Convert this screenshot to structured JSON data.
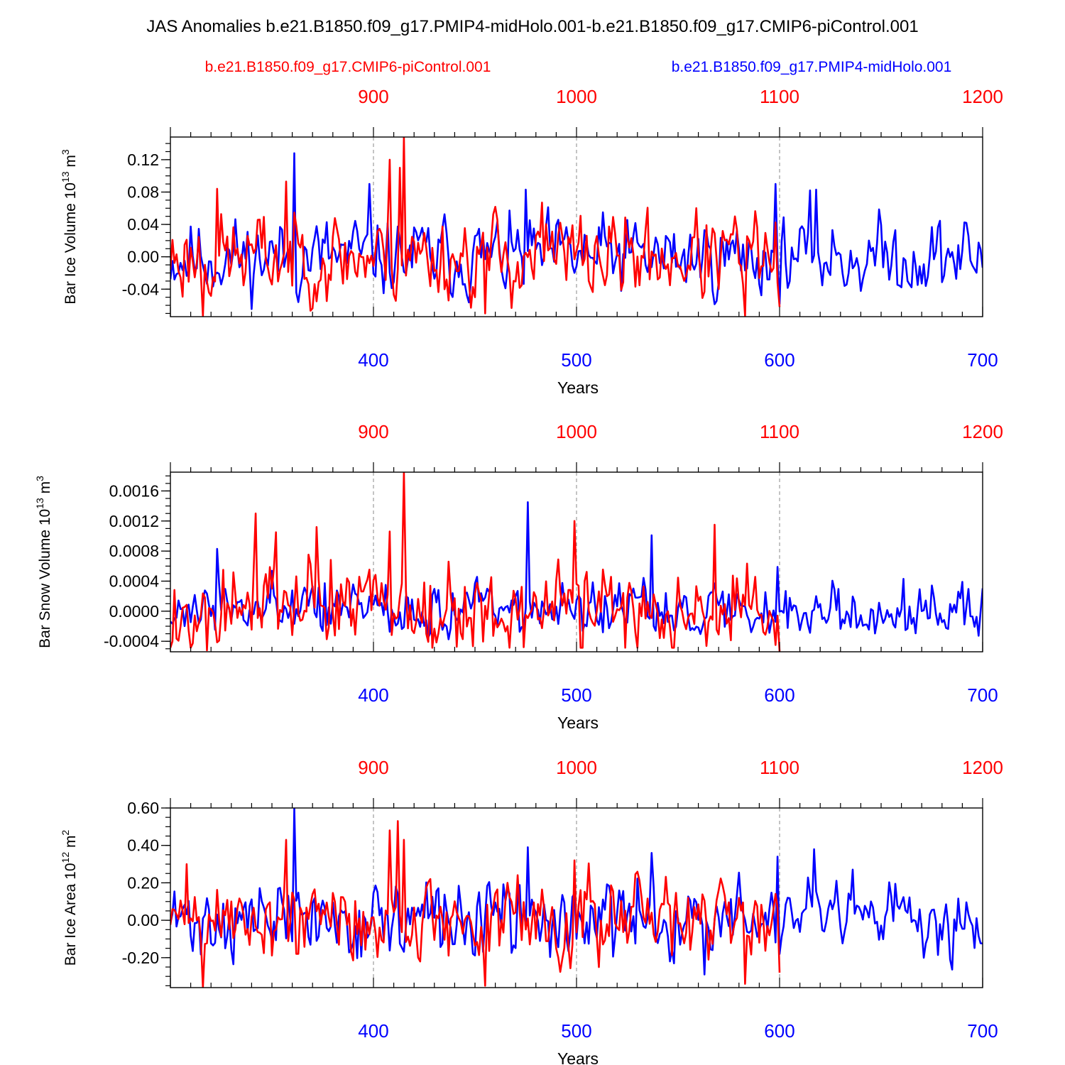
{
  "title": "JAS Anomalies b.e21.B1850.f09_g17.PMIP4-midHolo.001-b.e21.B1850.f09_g17.CMIP6-piControl.001",
  "legend": {
    "control": "b.e21.B1850.f09_g17.CMIP6-piControl.001",
    "experiment": "b.e21.B1850.f09_g17.PMIP4-midHolo.001"
  },
  "colors": {
    "control": "#ff0000",
    "experiment": "#0000ff",
    "axis": "#000000",
    "grid": "#888888"
  },
  "chart_data": [
    {
      "type": "line",
      "ylabel_main": "Bar Ice Volume 10",
      "ylabel_sup": "13",
      "ylabel_unit": " m",
      "ylabel_unit_sup": "3",
      "xlabel": "Years",
      "bottom_axis": {
        "range": [
          300,
          700
        ],
        "ticks": [
          "400",
          "500",
          "600",
          "700"
        ],
        "tick_values": [
          400,
          500,
          600,
          700
        ]
      },
      "top_axis": {
        "range": [
          800,
          1200
        ],
        "ticks": [
          "900",
          "1000",
          "1100",
          "1200"
        ],
        "tick_values": [
          900,
          1000,
          1100,
          1200
        ]
      },
      "ylim": [
        -0.074,
        0.148
      ],
      "y_ticks": [
        "0.12",
        "0.08",
        "0.04",
        "0.00",
        "-0.04"
      ],
      "y_tick_values": [
        0.12,
        0.08,
        0.04,
        0.0,
        -0.04
      ],
      "y_minor_step": 0.01,
      "series": [
        {
          "name": "b.e21.B1850.f09_g17.PMIP4-midHolo.001",
          "x_start": 300,
          "x_end": 700,
          "seed": 11,
          "sd": 0.024,
          "smooth": 0.4,
          "peaks": [
            [
              361,
              0.128
            ],
            [
              398,
              0.09
            ],
            [
              475,
              0.083
            ],
            [
              598,
              0.09
            ],
            [
              615,
              0.082
            ],
            [
              618,
              0.083
            ]
          ]
        },
        {
          "name": "b.e21.B1850.f09_g17.CMIP6-piControl.001",
          "x_start": 800,
          "x_end": 1100,
          "seed": 23,
          "sd": 0.027,
          "smooth": 0.4,
          "peaks": [
            [
              808,
              0.021
            ],
            [
              816,
              -0.073
            ],
            [
              823,
              0.084
            ],
            [
              857,
              0.093
            ],
            [
              908,
              0.12
            ],
            [
              913,
              0.11
            ],
            [
              915,
              0.148
            ],
            [
              955,
              -0.07
            ],
            [
              983,
              0.067
            ],
            [
              1083,
              -0.073
            ],
            [
              1100,
              -0.062
            ]
          ]
        }
      ]
    },
    {
      "type": "line",
      "ylabel_main": "Bar Snow Volume 10",
      "ylabel_sup": "13",
      "ylabel_unit": " m",
      "ylabel_unit_sup": "3",
      "xlabel": "Years",
      "bottom_axis": {
        "range": [
          300,
          700
        ],
        "ticks": [
          "400",
          "500",
          "600",
          "700"
        ],
        "tick_values": [
          400,
          500,
          600,
          700
        ]
      },
      "top_axis": {
        "range": [
          800,
          1200
        ],
        "ticks": [
          "900",
          "1000",
          "1100",
          "1200"
        ],
        "tick_values": [
          900,
          1000,
          1100,
          1200
        ]
      },
      "ylim": [
        -0.00054,
        0.00185
      ],
      "y_ticks": [
        "0.0016",
        "0.0012",
        "0.0008",
        "0.0004",
        "0.0000",
        "-0.0004"
      ],
      "y_tick_values": [
        0.0016,
        0.0012,
        0.0008,
        0.0004,
        0.0,
        -0.0004
      ],
      "y_minor_step": 0.0001,
      "series": [
        {
          "name": "b.e21.B1850.f09_g17.PMIP4-midHolo.001",
          "x_start": 300,
          "x_end": 700,
          "seed": 37,
          "sd": 0.00017,
          "smooth": 0.3,
          "skew": 6e-05,
          "peaks": [
            [
              323,
              0.00083
            ],
            [
              476,
              0.00145
            ],
            [
              537,
              0.00101
            ],
            [
              599,
              0.00059
            ],
            [
              661,
              0.00043
            ]
          ]
        },
        {
          "name": "b.e21.B1850.f09_g17.CMIP6-piControl.001",
          "x_start": 800,
          "x_end": 1100,
          "seed": 53,
          "sd": 0.00028,
          "smooth": 0.3,
          "skew": 0.0001,
          "peaks": [
            [
              801,
              -0.0004
            ],
            [
              818,
              -0.00052
            ],
            [
              842,
              0.0013
            ],
            [
              852,
              0.00105
            ],
            [
              872,
              0.00112
            ],
            [
              908,
              0.00106
            ],
            [
              915,
              0.00185
            ],
            [
              999,
              0.0012
            ],
            [
              1068,
              0.00115
            ],
            [
              1100,
              -0.00054
            ]
          ]
        }
      ]
    },
    {
      "type": "line",
      "ylabel_main": "Bar Ice Area 10",
      "ylabel_sup": "12",
      "ylabel_unit": " m",
      "ylabel_unit_sup": "2",
      "xlabel": "Years",
      "bottom_axis": {
        "range": [
          300,
          700
        ],
        "ticks": [
          "400",
          "500",
          "600",
          "700"
        ],
        "tick_values": [
          400,
          500,
          600,
          700
        ]
      },
      "top_axis": {
        "range": [
          800,
          1200
        ],
        "ticks": [
          "900",
          "1000",
          "1100",
          "1200"
        ],
        "tick_values": [
          900,
          1000,
          1100,
          1200
        ]
      },
      "ylim": [
        -0.36,
        0.6
      ],
      "y_ticks": [
        "0.60",
        "0.40",
        "0.20",
        "0.00",
        "-0.20"
      ],
      "y_tick_values": [
        0.6,
        0.4,
        0.2,
        0.0,
        -0.2
      ],
      "y_minor_step": 0.05,
      "series": [
        {
          "name": "b.e21.B1850.f09_g17.PMIP4-midHolo.001",
          "x_start": 300,
          "x_end": 700,
          "seed": 71,
          "sd": 0.1,
          "smooth": 0.35,
          "peaks": [
            [
              361,
              0.6
            ],
            [
              476,
              0.39
            ],
            [
              537,
              0.36
            ],
            [
              563,
              -0.29
            ],
            [
              599,
              0.34
            ],
            [
              617,
              0.38
            ]
          ]
        },
        {
          "name": "b.e21.B1850.f09_g17.CMIP6-piControl.001",
          "x_start": 800,
          "x_end": 1100,
          "seed": 89,
          "sd": 0.11,
          "smooth": 0.35,
          "peaks": [
            [
              808,
              0.3
            ],
            [
              816,
              -0.36
            ],
            [
              857,
              0.43
            ],
            [
              908,
              0.48
            ],
            [
              912,
              0.53
            ],
            [
              915,
              0.43
            ],
            [
              955,
              -0.35
            ],
            [
              999,
              0.32
            ],
            [
              1083,
              -0.34
            ],
            [
              1100,
              -0.28
            ]
          ]
        }
      ]
    }
  ]
}
